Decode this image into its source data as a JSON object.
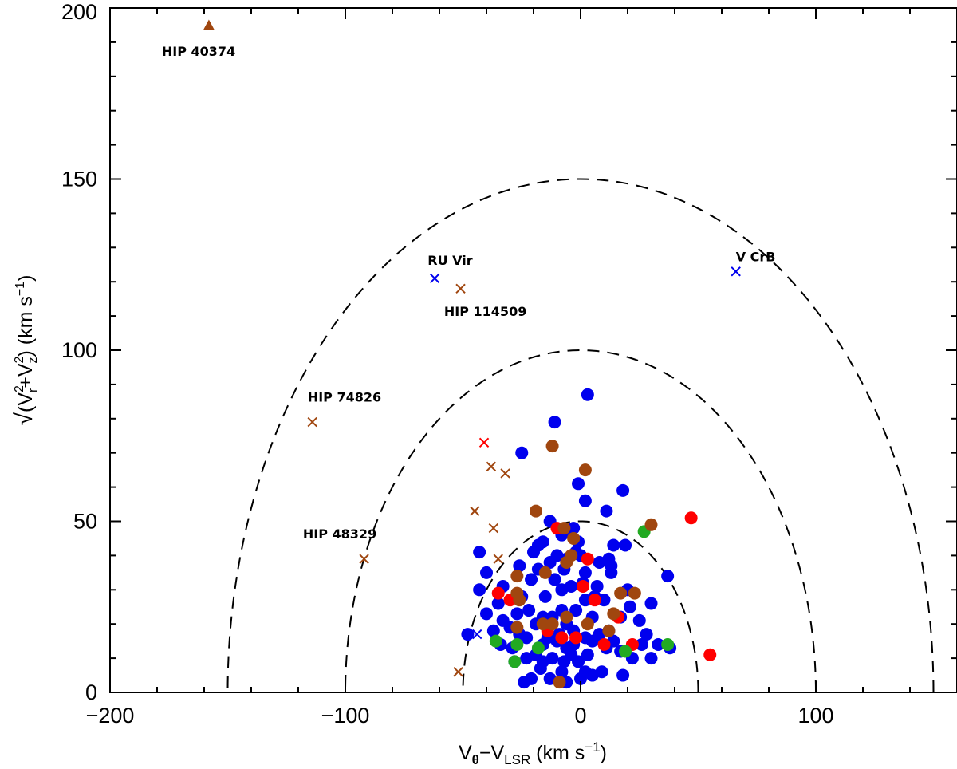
{
  "chart_data": {
    "type": "scatter",
    "title": "",
    "xlabel": "V_θ − V_LSR (km s⁻¹)",
    "ylabel": "√(V_r² + V_z²) (km s⁻¹)",
    "xlim": [
      -200,
      160
    ],
    "ylim": [
      0,
      200
    ],
    "x_ticks": [
      -200,
      -100,
      0,
      100
    ],
    "y_ticks": [
      0,
      50,
      100,
      150,
      200
    ],
    "grid": false,
    "legend": "none",
    "colors": {
      "blue": "#0000ee",
      "red": "#ff0000",
      "green": "#22aa22",
      "brown": "#a0460f",
      "curve": "#000000"
    },
    "reference_circles": [
      {
        "radius": 50
      },
      {
        "radius": 100
      },
      {
        "radius": 150
      }
    ],
    "series": [
      {
        "color": "blue",
        "marker": "circle",
        "points": [
          [
            3,
            87
          ],
          [
            -11,
            79
          ],
          [
            -25,
            70
          ],
          [
            -1,
            61
          ],
          [
            2,
            56
          ],
          [
            18,
            59
          ],
          [
            11,
            53
          ],
          [
            -13,
            50
          ],
          [
            -5,
            47
          ],
          [
            -3,
            48
          ],
          [
            -8,
            46
          ],
          [
            -1,
            44
          ],
          [
            -16,
            44
          ],
          [
            -18,
            43
          ],
          [
            14,
            43
          ],
          [
            19,
            43
          ],
          [
            -2,
            41
          ],
          [
            -20,
            41
          ],
          [
            -10,
            40
          ],
          [
            -6,
            39
          ],
          [
            0,
            40
          ],
          [
            12,
            39
          ],
          [
            13,
            37
          ],
          [
            8,
            38
          ],
          [
            -13,
            38
          ],
          [
            -43,
            41
          ],
          [
            -26,
            37
          ],
          [
            -18,
            36
          ],
          [
            -7,
            36
          ],
          [
            2,
            35
          ],
          [
            13,
            35
          ],
          [
            -40,
            35
          ],
          [
            -21,
            33
          ],
          [
            -11,
            33
          ],
          [
            1,
            32
          ],
          [
            7,
            31
          ],
          [
            37,
            34
          ],
          [
            -33,
            31
          ],
          [
            -4,
            31
          ],
          [
            -8,
            30
          ],
          [
            20,
            30
          ],
          [
            -43,
            30
          ],
          [
            -25,
            28
          ],
          [
            6,
            28
          ],
          [
            -15,
            28
          ],
          [
            2,
            27
          ],
          [
            10,
            27
          ],
          [
            -35,
            26
          ],
          [
            -22,
            24
          ],
          [
            -8,
            24
          ],
          [
            -2,
            24
          ],
          [
            -40,
            23
          ],
          [
            21,
            25
          ],
          [
            30,
            26
          ],
          [
            -27,
            23
          ],
          [
            -12,
            22
          ],
          [
            5,
            22
          ],
          [
            17,
            22
          ],
          [
            -16,
            22
          ],
          [
            25,
            21
          ],
          [
            -33,
            21
          ],
          [
            -19,
            20
          ],
          [
            -6,
            20
          ],
          [
            -30,
            19
          ],
          [
            -3,
            18
          ],
          [
            12,
            18
          ],
          [
            -48,
            17
          ],
          [
            -37,
            18
          ],
          [
            -9,
            17
          ],
          [
            2,
            16
          ],
          [
            8,
            17
          ],
          [
            28,
            17
          ],
          [
            -26,
            17
          ],
          [
            -14,
            16
          ],
          [
            -23,
            16
          ],
          [
            -3,
            14
          ],
          [
            -16,
            14
          ],
          [
            5,
            15
          ],
          [
            14,
            15
          ],
          [
            -10,
            15
          ],
          [
            -34,
            14
          ],
          [
            -29,
            13
          ],
          [
            -6,
            13
          ],
          [
            11,
            13
          ],
          [
            26,
            14
          ],
          [
            33,
            14
          ],
          [
            38,
            13
          ],
          [
            -19,
            11
          ],
          [
            -4,
            11
          ],
          [
            3,
            11
          ],
          [
            17,
            12
          ],
          [
            -28,
            9
          ],
          [
            -23,
            10
          ],
          [
            -16,
            9
          ],
          [
            -12,
            10
          ],
          [
            22,
            10
          ],
          [
            30,
            10
          ],
          [
            -7,
            9
          ],
          [
            -1,
            9
          ],
          [
            -17,
            7
          ],
          [
            -8,
            6
          ],
          [
            2,
            6
          ],
          [
            9,
            6
          ],
          [
            18,
            5
          ],
          [
            -21,
            4
          ],
          [
            -13,
            4
          ],
          [
            -6,
            3
          ],
          [
            -24,
            3
          ],
          [
            5,
            5
          ],
          [
            0,
            4
          ]
        ]
      },
      {
        "color": "red",
        "marker": "circle",
        "points": [
          [
            47,
            51
          ],
          [
            55,
            11
          ],
          [
            3,
            39
          ],
          [
            -10,
            48
          ],
          [
            -30,
            27
          ],
          [
            -14,
            18
          ],
          [
            -8,
            16
          ],
          [
            -2,
            16
          ],
          [
            10,
            14
          ],
          [
            22,
            14
          ],
          [
            6,
            27
          ],
          [
            1,
            31
          ],
          [
            -35,
            29
          ],
          [
            16,
            22
          ]
        ]
      },
      {
        "color": "green",
        "marker": "circle",
        "points": [
          [
            27,
            47
          ],
          [
            -36,
            15
          ],
          [
            -27,
            14
          ],
          [
            -28,
            9
          ],
          [
            19,
            12
          ],
          [
            37,
            14
          ],
          [
            -18,
            13
          ]
        ]
      },
      {
        "color": "brown",
        "marker": "circle",
        "points": [
          [
            -12,
            72
          ],
          [
            2,
            65
          ],
          [
            -19,
            53
          ],
          [
            30,
            49
          ],
          [
            -7,
            48
          ],
          [
            -3,
            45
          ],
          [
            -4,
            40
          ],
          [
            -6,
            38
          ],
          [
            -15,
            35
          ],
          [
            -27,
            34
          ],
          [
            -27,
            29
          ],
          [
            17,
            29
          ],
          [
            23,
            29
          ],
          [
            -26,
            27
          ],
          [
            14,
            23
          ],
          [
            -6,
            22
          ],
          [
            3,
            20
          ],
          [
            -16,
            20
          ],
          [
            -12,
            20
          ],
          [
            -27,
            19
          ],
          [
            12,
            18
          ],
          [
            -9,
            3
          ]
        ]
      },
      {
        "color": "brown",
        "marker": "cross",
        "points": [
          [
            -114,
            79
          ],
          [
            -92,
            39
          ],
          [
            -51,
            118
          ],
          [
            -38,
            66
          ],
          [
            -32,
            64
          ],
          [
            -45,
            53
          ],
          [
            -37,
            48
          ],
          [
            -35,
            39
          ],
          [
            -52,
            6
          ]
        ]
      },
      {
        "color": "red",
        "marker": "cross",
        "points": [
          [
            -41,
            73
          ]
        ]
      },
      {
        "color": "blue",
        "marker": "cross",
        "points": [
          [
            -62,
            121
          ],
          [
            66,
            123
          ],
          [
            -44,
            17
          ]
        ]
      },
      {
        "color": "brown",
        "marker": "triangle",
        "points": [
          [
            -158,
            195
          ]
        ]
      }
    ],
    "annotations": [
      {
        "text": "HIP 40374",
        "x": -178,
        "y": 186
      },
      {
        "text": "RU Vir",
        "x": -65,
        "y": 125
      },
      {
        "text": "HIP 114509",
        "x": -58,
        "y": 110
      },
      {
        "text": "V CrB",
        "x": 66,
        "y": 126
      },
      {
        "text": "HIP 74826",
        "x": -116,
        "y": 85
      },
      {
        "text": "HIP 48329",
        "x": -118,
        "y": 45
      }
    ]
  }
}
